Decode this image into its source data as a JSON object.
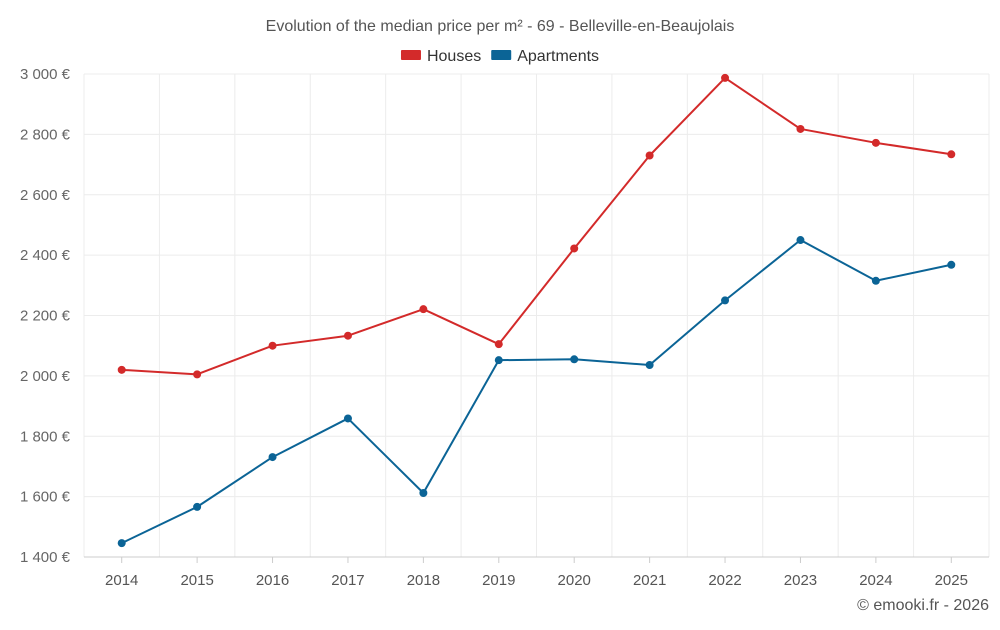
{
  "chart_data": {
    "type": "line",
    "title": "Evolution of the median price per m² - 69 - Belleville-en-Beaujolais",
    "categories": [
      "2014",
      "2015",
      "2016",
      "2017",
      "2018",
      "2019",
      "2020",
      "2021",
      "2022",
      "2023",
      "2024",
      "2025"
    ],
    "series": [
      {
        "name": "Houses",
        "color": "#d32a2a",
        "values": [
          2020,
          2005,
          2100,
          2133,
          2221,
          2105,
          2422,
          2730,
          2987,
          2818,
          2772,
          2734
        ]
      },
      {
        "name": "Apartments",
        "color": "#0b6496",
        "values": [
          1446,
          1566,
          1731,
          1859,
          1612,
          2052,
          2055,
          2036,
          2250,
          2450,
          2315,
          2368
        ]
      }
    ],
    "y_ticks": [
      1400,
      1600,
      1800,
      2000,
      2200,
      2400,
      2600,
      2800,
      3000
    ],
    "y_tick_labels": [
      "1 400 €",
      "1 600 €",
      "1 800 €",
      "2 000 €",
      "2 200 €",
      "2 400 €",
      "2 600 €",
      "2 800 €",
      "3 000 €"
    ],
    "ylim": [
      1400,
      3000
    ],
    "xlabel": "",
    "ylabel": "",
    "grid": true,
    "legend_position": "top-center",
    "credit": "© emooki.fr - 2026"
  }
}
